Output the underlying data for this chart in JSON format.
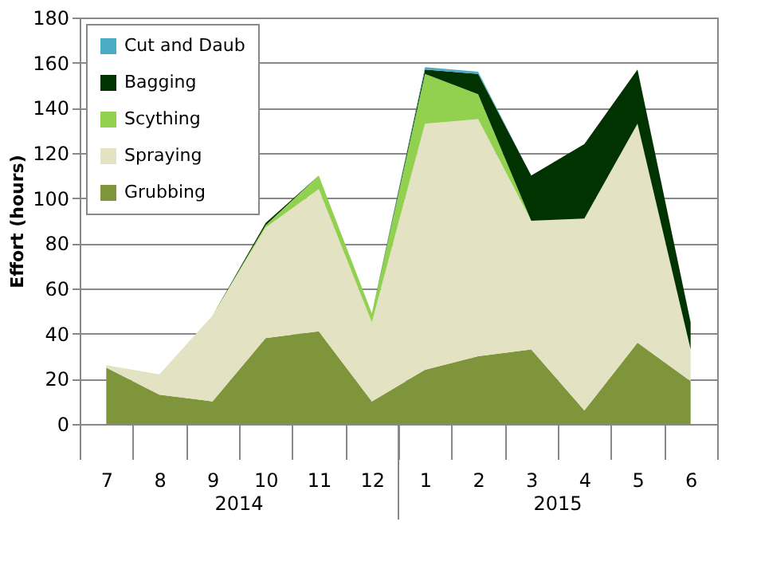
{
  "chart_data": {
    "type": "area",
    "stacked": true,
    "ylabel": "Effort  (hours)",
    "categories": [
      "7",
      "8",
      "9",
      "10",
      "11",
      "12",
      "1",
      "2",
      "3",
      "4",
      "5",
      "6"
    ],
    "annotations": [
      "2014",
      "2015"
    ],
    "series": [
      {
        "name": "Grubbing",
        "color": "#7f953b",
        "values": [
          25,
          13,
          10,
          38,
          41,
          10,
          24,
          30,
          33,
          6,
          36,
          19
        ]
      },
      {
        "name": "Spraying",
        "color": "#e3e2c3",
        "values": [
          1,
          9,
          38,
          49,
          63,
          35,
          109,
          105,
          57,
          85,
          97,
          14
        ]
      },
      {
        "name": "Scything",
        "color": "#92d050",
        "values": [
          0,
          0,
          0,
          1,
          6,
          4,
          22,
          11,
          0,
          0,
          0,
          0
        ]
      },
      {
        "name": "Bagging",
        "color": "#003300",
        "values": [
          0,
          0,
          0,
          1,
          0,
          0,
          2,
          9,
          20,
          33,
          24,
          12
        ]
      },
      {
        "name": "Cut and Daub",
        "color": "#4bacc6",
        "values": [
          0,
          0,
          0,
          0,
          0,
          0,
          1,
          1,
          0,
          0,
          0,
          0
        ]
      }
    ],
    "ylim": [
      0,
      180
    ],
    "yticks": [
      0,
      20,
      40,
      60,
      80,
      100,
      120,
      140,
      160,
      180
    ],
    "grid": "y",
    "legend": "top left"
  }
}
